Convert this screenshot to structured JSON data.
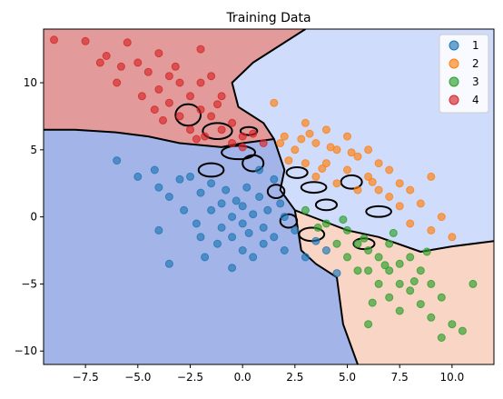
{
  "chart_data": {
    "type": "scatter",
    "title": "Training Data",
    "xlabel": "",
    "ylabel": "",
    "xlim": [
      -9.5,
      12
    ],
    "ylim": [
      -11,
      14
    ],
    "xticks": [
      -7.5,
      -5.0,
      -2.5,
      0.0,
      2.5,
      5.0,
      7.5,
      10.0
    ],
    "xtick_labels": [
      "−7.5",
      "−5.0",
      "−2.5",
      "0.0",
      "2.5",
      "5.0",
      "7.5",
      "10.0"
    ],
    "yticks": [
      -10,
      -5,
      0,
      5,
      10
    ],
    "ytick_labels": [
      "−10",
      "−5",
      "0",
      "5",
      "10"
    ],
    "grid": false,
    "legend_position": "top-right",
    "series": [
      {
        "name": "1",
        "color": "#1f77b4",
        "points": [
          [
            -6,
            4.2
          ],
          [
            -5,
            3
          ],
          [
            -4.2,
            3.5
          ],
          [
            -4,
            2.2
          ],
          [
            -3.5,
            1.5
          ],
          [
            -3,
            2.8
          ],
          [
            -2.8,
            0.5
          ],
          [
            -2.5,
            3
          ],
          [
            -2.2,
            -0.5
          ],
          [
            -2,
            1.8
          ],
          [
            -2,
            -1.5
          ],
          [
            -1.5,
            0.5
          ],
          [
            -1.5,
            2.5
          ],
          [
            -1.2,
            -2
          ],
          [
            -1,
            1
          ],
          [
            -1,
            -0.8
          ],
          [
            -0.8,
            2
          ],
          [
            -0.5,
            0
          ],
          [
            -0.5,
            -1.5
          ],
          [
            -0.3,
            1.2
          ],
          [
            0,
            -0.5
          ],
          [
            0,
            0.8
          ],
          [
            0,
            -2.5
          ],
          [
            0.2,
            2.2
          ],
          [
            0.3,
            -1.2
          ],
          [
            0.5,
            0.2
          ],
          [
            0.5,
            -3
          ],
          [
            0.8,
            1.5
          ],
          [
            1,
            -0.8
          ],
          [
            1,
            -2
          ],
          [
            1.2,
            0.5
          ],
          [
            1.5,
            -1.5
          ],
          [
            1.8,
            1
          ],
          [
            2,
            -2.5
          ],
          [
            2,
            0
          ],
          [
            2.5,
            -1
          ],
          [
            3,
            -3
          ],
          [
            3.5,
            -1.8
          ],
          [
            4,
            -2.5
          ],
          [
            4.5,
            -4.2
          ],
          [
            -1.8,
            -3
          ],
          [
            -3.5,
            -3.5
          ],
          [
            -4,
            -1
          ],
          [
            0.8,
            3.5
          ],
          [
            1.5,
            2.8
          ],
          [
            -0.5,
            -3.8
          ]
        ]
      },
      {
        "name": "2",
        "color": "#ff7f0e",
        "points": [
          [
            1.5,
            8.5
          ],
          [
            2,
            6
          ],
          [
            2.5,
            5
          ],
          [
            3,
            7
          ],
          [
            3,
            4
          ],
          [
            3.5,
            5.5
          ],
          [
            3.5,
            3
          ],
          [
            4,
            6.5
          ],
          [
            4,
            4
          ],
          [
            4.5,
            5
          ],
          [
            4.5,
            2.5
          ],
          [
            5,
            6
          ],
          [
            5,
            3.5
          ],
          [
            5.5,
            4.5
          ],
          [
            5.5,
            2
          ],
          [
            6,
            5
          ],
          [
            6,
            3
          ],
          [
            6.5,
            4
          ],
          [
            6.5,
            2
          ],
          [
            7,
            3.5
          ],
          [
            7,
            1.5
          ],
          [
            7.5,
            2.5
          ],
          [
            7.5,
            0.8
          ],
          [
            8,
            2
          ],
          [
            8,
            -0.5
          ],
          [
            8.5,
            1
          ],
          [
            9,
            3
          ],
          [
            9,
            -1
          ],
          [
            9.5,
            0
          ],
          [
            10,
            -1.5
          ],
          [
            3.2,
            6.2
          ],
          [
            2.8,
            5.8
          ],
          [
            4.2,
            5.2
          ],
          [
            5.2,
            4.8
          ],
          [
            3.8,
            3.6
          ],
          [
            6.2,
            2.6
          ],
          [
            2.2,
            4.2
          ],
          [
            1.8,
            5.5
          ]
        ]
      },
      {
        "name": "3",
        "color": "#2ca02c",
        "points": [
          [
            3,
            0.5
          ],
          [
            4,
            -0.5
          ],
          [
            4.5,
            -2
          ],
          [
            5,
            -1
          ],
          [
            5,
            -3
          ],
          [
            5.5,
            -2
          ],
          [
            5.5,
            -4
          ],
          [
            6,
            -2.5
          ],
          [
            6,
            -4
          ],
          [
            6.5,
            -3
          ],
          [
            6.5,
            -5
          ],
          [
            7,
            -2
          ],
          [
            7,
            -4
          ],
          [
            7,
            -6
          ],
          [
            7.5,
            -3.5
          ],
          [
            7.5,
            -5
          ],
          [
            7.5,
            -7
          ],
          [
            8,
            -3
          ],
          [
            8,
            -5.5
          ],
          [
            8.5,
            -4
          ],
          [
            8.5,
            -6.5
          ],
          [
            9,
            -5
          ],
          [
            9,
            -7.5
          ],
          [
            9.5,
            -6
          ],
          [
            9.5,
            -9
          ],
          [
            10,
            -8
          ],
          [
            10.5,
            -8.5
          ],
          [
            11,
            -5
          ],
          [
            6,
            -8
          ],
          [
            8.2,
            -4.8
          ],
          [
            6.8,
            -3.6
          ],
          [
            5.8,
            -1.6
          ],
          [
            4.8,
            -0.2
          ],
          [
            3.6,
            -0.8
          ],
          [
            7.2,
            -1.2
          ],
          [
            8.8,
            -2.6
          ],
          [
            6.2,
            -6.4
          ]
        ]
      },
      {
        "name": "4",
        "color": "#d62728",
        "points": [
          [
            -9,
            13.2
          ],
          [
            -7.5,
            13.1
          ],
          [
            -6.5,
            12
          ],
          [
            -5.5,
            13
          ],
          [
            -5,
            11.5
          ],
          [
            -4.5,
            10.8
          ],
          [
            -4,
            12.2
          ],
          [
            -4,
            9.5
          ],
          [
            -3.5,
            10.5
          ],
          [
            -3.5,
            8.5
          ],
          [
            -3,
            10
          ],
          [
            -3,
            7.5
          ],
          [
            -2.5,
            9
          ],
          [
            -2.5,
            6.5
          ],
          [
            -2,
            8
          ],
          [
            -2,
            10
          ],
          [
            -1.8,
            6
          ],
          [
            -1.5,
            7.5
          ],
          [
            -1,
            6.5
          ],
          [
            -1,
            9
          ],
          [
            -0.5,
            5.5
          ],
          [
            -0.5,
            7
          ],
          [
            0,
            6
          ],
          [
            0,
            5.2
          ],
          [
            0.5,
            6.2
          ],
          [
            -2,
            12.5
          ],
          [
            -1.5,
            10.5
          ],
          [
            -6,
            10
          ],
          [
            -5.8,
            11.2
          ],
          [
            -4.8,
            9
          ],
          [
            -3.8,
            7.2
          ],
          [
            -2.2,
            5.8
          ],
          [
            -1.2,
            8.4
          ],
          [
            -4.2,
            8
          ],
          [
            -3.2,
            11.2
          ],
          [
            -6.8,
            11.5
          ],
          [
            1,
            5.5
          ]
        ]
      }
    ],
    "regions": [
      {
        "class": "1",
        "color": "#a3b4e8"
      },
      {
        "class": "2",
        "color": "#d0dcfb"
      },
      {
        "class": "3",
        "color": "#f8d5c4"
      },
      {
        "class": "4",
        "color": "#e29a9a"
      }
    ]
  }
}
